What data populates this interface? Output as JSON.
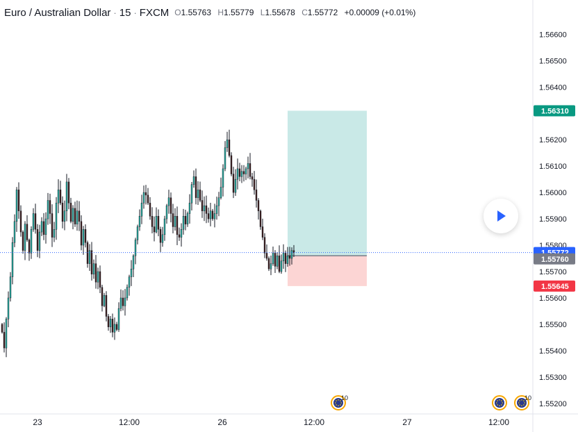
{
  "symbol": {
    "name": "Euro / Australian Dollar",
    "sep1": "·",
    "interval": "15",
    "sep2": "·",
    "exchange": "FXCM"
  },
  "ohlc": {
    "open_label": "O",
    "open": "1.55763",
    "high_label": "H",
    "high": "1.55779",
    "low_label": "L",
    "low": "1.55678",
    "close_label": "C",
    "close": "1.55772",
    "change": "+0.00009 (+0.01%)"
  },
  "colors": {
    "up": "#26a69a",
    "down": "#ef5350",
    "candle_body": "#3d1f1f",
    "profit_zone": "#c9e9e7",
    "loss_zone": "#fcd5d4",
    "target_label": "#089981",
    "stop_label": "#f23645",
    "last_price_label": "#2962ff",
    "entry_label": "#787b86"
  },
  "price_axis": {
    "ticks": [
      "1.56600",
      "1.56500",
      "1.56400",
      "1.56300",
      "1.56200",
      "1.56100",
      "1.56000",
      "1.55900",
      "1.55800",
      "1.55700",
      "1.55600",
      "1.55500",
      "1.55400",
      "1.55300",
      "1.55200"
    ],
    "target_label": "1.56310",
    "last_price_label": "1.55772",
    "entry_label": "1.55760",
    "stop_label": "1.55645"
  },
  "time_axis": {
    "labels": [
      "23",
      "12:00",
      "26",
      "12:00",
      "27",
      "12:00"
    ]
  },
  "events": [
    {
      "icon": "eu-flag-event-icon",
      "count": "10"
    },
    {
      "icon": "eu-flag-event-icon",
      "count": ""
    },
    {
      "icon": "eu-flag-event-icon",
      "count": "10"
    }
  ],
  "chart_data": {
    "type": "candlestick",
    "x": [
      "23",
      "12:00",
      "26",
      "12:00",
      "27",
      "12:00"
    ],
    "ylim": [
      1.5516,
      1.5673
    ],
    "position": {
      "type": "long",
      "entry": 1.5576,
      "target": 1.5631,
      "stop": 1.55645
    },
    "last_price": 1.55772,
    "closes": [
      1.5547,
      1.5541,
      1.5552,
      1.556,
      1.5568,
      1.5581,
      1.5589,
      1.5601,
      1.5593,
      1.5585,
      1.5578,
      1.5588,
      1.5582,
      1.5577,
      1.5586,
      1.5592,
      1.5586,
      1.5578,
      1.5585,
      1.5589,
      1.5584,
      1.559,
      1.5597,
      1.5592,
      1.5583,
      1.5586,
      1.5596,
      1.5601,
      1.5596,
      1.5589,
      1.5593,
      1.5604,
      1.5596,
      1.5589,
      1.5594,
      1.5588,
      1.5593,
      1.5589,
      1.558,
      1.5586,
      1.5581,
      1.5573,
      1.5578,
      1.5569,
      1.5573,
      1.5566,
      1.557,
      1.5564,
      1.5557,
      1.5561,
      1.5553,
      1.5549,
      1.5552,
      1.5547,
      1.555,
      1.5548,
      1.5556,
      1.556,
      1.5557,
      1.556,
      1.5564,
      1.5568,
      1.5571,
      1.5576,
      1.5582,
      1.5587,
      1.5591,
      1.5596,
      1.56,
      1.5599,
      1.5596,
      1.5591,
      1.5587,
      1.5585,
      1.5591,
      1.5586,
      1.5581,
      1.5584,
      1.559,
      1.5595,
      1.5598,
      1.5592,
      1.5587,
      1.5591,
      1.5584,
      1.5583,
      1.5586,
      1.5591,
      1.5588,
      1.5592,
      1.5596,
      1.5603,
      1.5606,
      1.5598,
      1.5601,
      1.5597,
      1.5593,
      1.5595,
      1.5592,
      1.559,
      1.5593,
      1.559,
      1.5592,
      1.5595,
      1.5598,
      1.5602,
      1.5609,
      1.5617,
      1.562,
      1.5614,
      1.5607,
      1.56,
      1.5605,
      1.5609,
      1.5606,
      1.5608,
      1.5607,
      1.5609,
      1.5611,
      1.5606,
      1.5605,
      1.5601,
      1.5597,
      1.5593,
      1.5587,
      1.5583,
      1.5577,
      1.5575,
      1.5571,
      1.5573,
      1.5577,
      1.5572,
      1.5576,
      1.557,
      1.5574,
      1.5577,
      1.5573,
      1.5576,
      1.5575,
      1.5578,
      1.55772
    ]
  }
}
